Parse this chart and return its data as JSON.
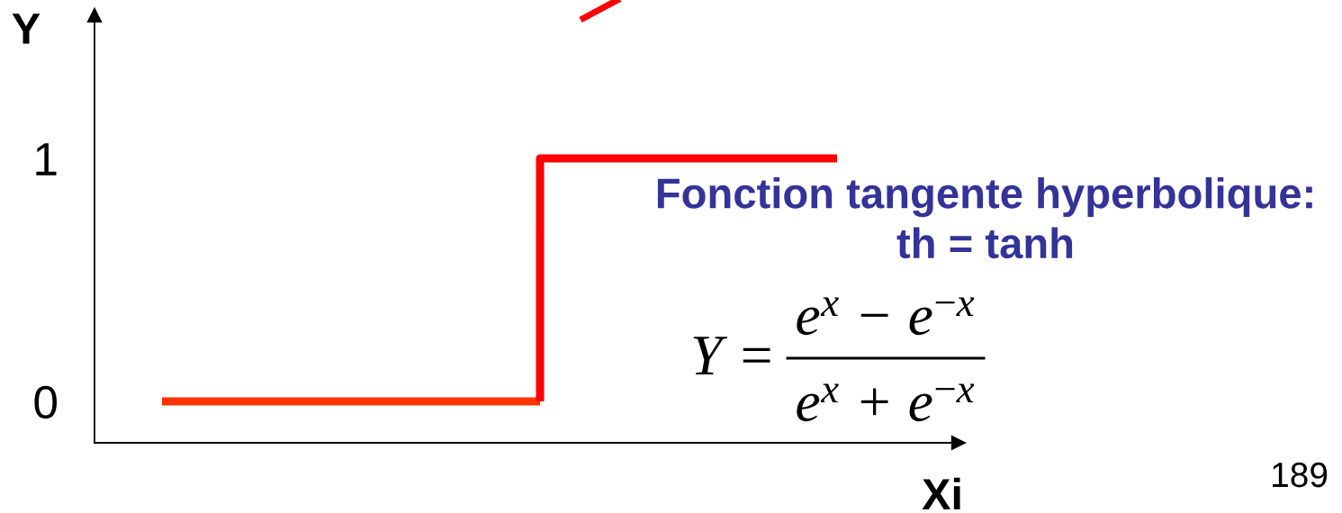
{
  "chart_data": {
    "type": "step",
    "xlabel": "Xi",
    "ylabel": "Y",
    "categories": [
      null,
      null,
      null,
      null,
      null,
      null,
      null,
      null,
      null,
      null,
      null,
      null,
      null,
      null,
      null,
      null,
      null,
      null,
      null,
      null,
      null,
      null,
      null,
      null,
      null,
      null,
      null,
      null,
      null,
      null,
      null,
      null
    ],
    "series": [
      {
        "color": "#ff3300",
        "values": [
          null,
          null,
          0,
          0,
          0,
          0,
          0,
          0,
          0,
          0,
          0,
          0,
          0,
          0,
          0,
          0,
          0,
          null,
          null,
          null,
          null,
          null,
          null,
          null,
          null,
          null,
          null,
          null,
          null,
          null,
          null,
          null
        ]
      },
      {
        "color": "#ff0000",
        "values": [
          null,
          null,
          null,
          null,
          null,
          null,
          null,
          null,
          null,
          null,
          null,
          null,
          null,
          null,
          null,
          null,
          0,
          1,
          1,
          1,
          1,
          1,
          1,
          1,
          1,
          1,
          1,
          1,
          null,
          null,
          null,
          null
        ]
      }
    ],
    "ylim": [
      -0.17,
      1.59
    ],
    "yticks": [
      0,
      1
    ],
    "tick_labels": "y",
    "annotations": [
      "Fonction tangente hyperbolique:\nth = tanh",
      "Y =",
      "e$^{x}$ − e$^{−x}$",
      "e$^{x}$ + e$^{−x}$",
      "189"
    ]
  }
}
